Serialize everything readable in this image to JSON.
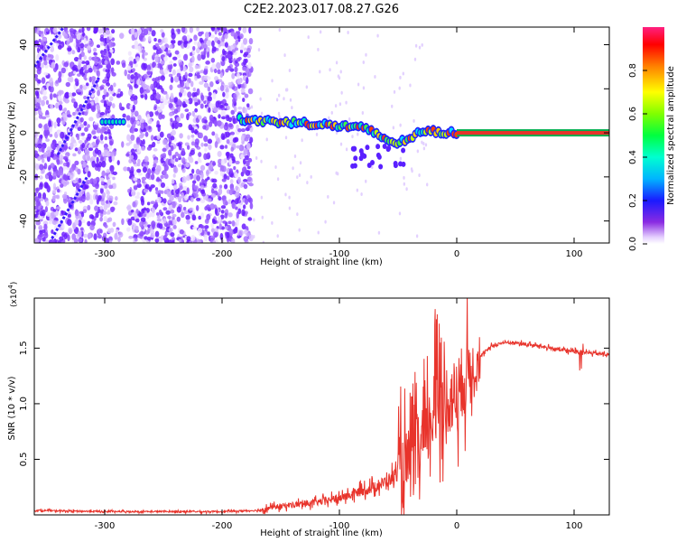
{
  "title": "C2E2.2023.017.08.27.G26",
  "colors": {
    "snr_line": "#e8332b",
    "carrier_line": "#e8332b",
    "carrier_edge": "#00b050",
    "scatter": "#6a1bff"
  },
  "chart_data": [
    {
      "type": "heatmap",
      "xlabel": "Height of straight line (km)",
      "ylabel": "Frequency (Hz)",
      "xlim": [
        -360,
        130
      ],
      "ylim": [
        -50,
        48
      ],
      "xticks": [
        -300,
        -200,
        -100,
        0,
        100
      ],
      "xtick_labels": [
        "-300",
        "-200",
        "-100",
        "0",
        "100"
      ],
      "yticks": [
        -40,
        -20,
        0,
        20,
        40
      ],
      "ytick_labels": [
        "-40",
        "-20",
        "0",
        "20",
        "40"
      ],
      "noise_region": [
        -360,
        -175
      ],
      "signal_track": {
        "x": [
          -185,
          -170,
          -150,
          -130,
          -110,
          -95,
          -80,
          -70,
          -60,
          -50,
          -40,
          -30,
          -20,
          -10,
          0
        ],
        "y": [
          6,
          5.5,
          5,
          4.5,
          3.5,
          3,
          2,
          0,
          -3,
          -5,
          -2,
          0,
          1,
          0,
          0
        ]
      },
      "carrier_line": {
        "x": [
          0,
          130
        ],
        "y": 0
      },
      "colorbar": {
        "label": "Normalized spectral amplitude",
        "range": [
          0.0,
          1.0
        ],
        "ticks": [
          0.0,
          0.2,
          0.4,
          0.6,
          0.8
        ],
        "tick_labels": [
          "0.0",
          "0.2",
          "0.4",
          "0.6",
          "0.8"
        ]
      }
    },
    {
      "type": "line",
      "xlabel": "Height of straight line (km)",
      "ylabel": "SNR (10 * v/v)",
      "multiplier": "(x10",
      "multiplier_exp": "4",
      "multiplier_close": ")",
      "xlim": [
        -360,
        130
      ],
      "ylim": [
        0,
        1.95
      ],
      "xticks": [
        -300,
        -200,
        -100,
        0,
        100
      ],
      "xtick_labels": [
        "-300",
        "-200",
        "-100",
        "0",
        "100"
      ],
      "yticks": [
        0.5,
        1.0,
        1.5
      ],
      "ytick_labels": [
        "0.5",
        "1.0",
        "1.5"
      ],
      "series": [
        {
          "x": [
            -360,
            -300,
            -200,
            -170,
            -160,
            -150,
            -140,
            -130,
            -120,
            -110,
            -100,
            -90,
            -80,
            -70,
            -60,
            -50,
            -40,
            -30,
            -25,
            -20,
            -15,
            -10,
            -5,
            0,
            5,
            10,
            20,
            30,
            40,
            50,
            60,
            70,
            80,
            90,
            100,
            110,
            120,
            130
          ],
          "y": [
            0.04,
            0.03,
            0.03,
            0.04,
            0.06,
            0.08,
            0.09,
            0.1,
            0.11,
            0.13,
            0.15,
            0.18,
            0.22,
            0.25,
            0.3,
            0.38,
            0.45,
            0.6,
            0.75,
            0.9,
            1.0,
            1.05,
            1.05,
            1.1,
            1.2,
            1.3,
            1.42,
            1.52,
            1.55,
            1.55,
            1.53,
            1.52,
            1.5,
            1.48,
            1.47,
            1.46,
            1.45,
            1.44
          ]
        }
      ]
    }
  ]
}
